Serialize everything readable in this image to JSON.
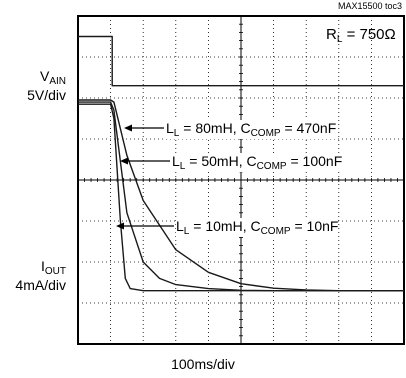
{
  "chart_data": {
    "type": "line",
    "title": "",
    "doc_id": "MAX15500 toc3",
    "resistance_label": {
      "prefix": "R",
      "sub": "L",
      "suffix": " = 750Ω"
    },
    "xlabel": "100ms/div",
    "x_divisions": 10,
    "y_divisions": 8,
    "xlim": [
      0,
      10
    ],
    "ylim": [
      0,
      8
    ],
    "grid": true,
    "channels": [
      {
        "name_main": "V",
        "name_sub": "AIN",
        "scale": "5V/div"
      },
      {
        "name_main": "I",
        "name_sub": "OUT",
        "scale": "4mA/div"
      }
    ],
    "series": [
      {
        "id": "vain",
        "x": [
          0,
          1.05,
          1.05,
          10
        ],
        "y": [
          7.5,
          7.5,
          6.3,
          6.3
        ]
      },
      {
        "id": "iout-80mH",
        "x": [
          0,
          1.0,
          1.1,
          1.5,
          2,
          3,
          4,
          5,
          6,
          7,
          8,
          9,
          10
        ],
        "y": [
          5.95,
          5.95,
          5.9,
          4.6,
          3.5,
          2.3,
          1.75,
          1.47,
          1.36,
          1.32,
          1.3,
          1.3,
          1.3
        ],
        "annotation": {
          "L": "80mH",
          "C": "470nF"
        }
      },
      {
        "id": "iout-50mH",
        "x": [
          0,
          1.0,
          1.1,
          1.5,
          2,
          2.5,
          3,
          4,
          5,
          6,
          10
        ],
        "y": [
          5.9,
          5.9,
          5.7,
          3.2,
          2.0,
          1.6,
          1.45,
          1.35,
          1.31,
          1.3,
          1.3
        ],
        "annotation": {
          "L": "50mH",
          "C": "100nF"
        }
      },
      {
        "id": "iout-10mH",
        "x": [
          0,
          1.0,
          1.1,
          1.3,
          1.45,
          1.6,
          2,
          10
        ],
        "y": [
          5.85,
          5.85,
          5.5,
          3.0,
          1.6,
          1.35,
          1.3,
          1.3
        ],
        "annotation": {
          "L": "10mH",
          "C": "10nF"
        }
      }
    ],
    "annotation_template": {
      "l_prefix": "L",
      "l_sub": "L",
      "c_prefix": ", C",
      "c_sub": "COMP",
      "eq": " = "
    }
  }
}
